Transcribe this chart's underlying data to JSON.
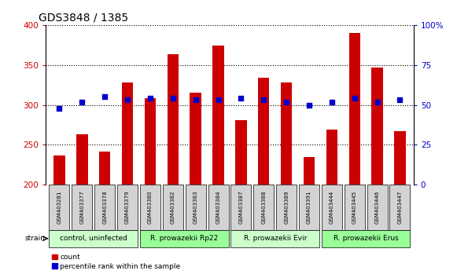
{
  "title": "GDS3848 / 1385",
  "samples": [
    "GSM403281",
    "GSM403377",
    "GSM403378",
    "GSM403379",
    "GSM403380",
    "GSM403382",
    "GSM403383",
    "GSM403384",
    "GSM403387",
    "GSM403388",
    "GSM403389",
    "GSM403391",
    "GSM403444",
    "GSM403445",
    "GSM403446",
    "GSM403447"
  ],
  "counts": [
    237,
    263,
    242,
    328,
    308,
    363,
    315,
    374,
    281,
    334,
    328,
    235,
    269,
    390,
    347,
    267
  ],
  "percentiles": [
    48,
    52,
    55,
    53,
    54,
    54,
    53,
    53,
    54,
    53,
    52,
    50,
    52,
    54,
    52,
    53
  ],
  "groups": [
    {
      "label": "control, uninfected",
      "start": 0,
      "end": 3,
      "color": "#ccffcc"
    },
    {
      "label": "R. prowazekii Rp22",
      "start": 4,
      "end": 7,
      "color": "#99ff99"
    },
    {
      "label": "R. prowazekii Evir",
      "start": 8,
      "end": 11,
      "color": "#ccffcc"
    },
    {
      "label": "R. prowazekii Erus",
      "start": 12,
      "end": 15,
      "color": "#99ff99"
    }
  ],
  "ylim_left": [
    200,
    400
  ],
  "ylim_right": [
    0,
    100
  ],
  "yticks_left": [
    200,
    250,
    300,
    350,
    400
  ],
  "yticks_right": [
    0,
    25,
    50,
    75,
    100
  ],
  "bar_color": "#cc0000",
  "dot_color": "#0000cc",
  "bg_color": "#ffffff",
  "plot_bg": "#ffffff",
  "grid_color": "#000000",
  "tick_color_left": "#cc0000",
  "tick_color_right": "#0000cc",
  "legend_count_label": "count",
  "legend_pct_label": "percentile rank within the sample",
  "strain_label": "strain"
}
